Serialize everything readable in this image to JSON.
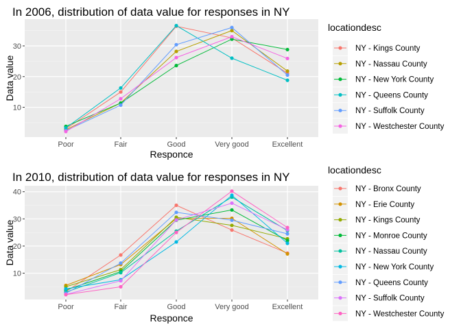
{
  "chart_data": [
    {
      "type": "line",
      "title": "In 2006, distribution of data value for responses in NY",
      "xlabel": "Responce",
      "ylabel": "Data value",
      "categories": [
        "Poor",
        "Fair",
        "Good",
        "Very good",
        "Excellent"
      ],
      "ylim": [
        0.3,
        38.7
      ],
      "yticks": [
        10,
        20,
        30
      ],
      "grid": true,
      "legend_position": "right",
      "legend_title": "locationdesc",
      "series": [
        {
          "name": "NY - Kings County",
          "color": "#F8766D",
          "values": [
            3.0,
            15.0,
            36.4,
            32.6,
            21.1
          ]
        },
        {
          "name": "NY - Nassau County",
          "color": "#B79F00",
          "values": [
            2.7,
            11.4,
            28.2,
            35.0,
            21.8
          ]
        },
        {
          "name": "NY - New York County",
          "color": "#00BA38",
          "values": [
            3.8,
            11.4,
            23.6,
            32.2,
            28.8
          ]
        },
        {
          "name": "NY - Queens County",
          "color": "#00BFC4",
          "values": [
            3.3,
            16.3,
            36.6,
            26.0,
            18.8
          ]
        },
        {
          "name": "NY - Suffolk County",
          "color": "#619CFF",
          "values": [
            2.4,
            10.7,
            30.4,
            36.0,
            20.5
          ]
        },
        {
          "name": "NY - Westchester County",
          "color": "#F564E3",
          "values": [
            2.1,
            12.8,
            26.2,
            33.0,
            25.9
          ]
        }
      ]
    },
    {
      "type": "line",
      "title": "In 2010, distribution of data value for responses in NY",
      "xlabel": "Responce",
      "ylabel": "Data value",
      "categories": [
        "Poor",
        "Fair",
        "Good",
        "Very good",
        "Excellent"
      ],
      "ylim": [
        0.3,
        42.2
      ],
      "yticks": [
        10,
        20,
        30,
        40
      ],
      "grid": true,
      "legend_position": "right",
      "legend_title": "locationdesc",
      "series": [
        {
          "name": "NY - Bronx County",
          "color": "#F8766D",
          "values": [
            3.2,
            16.7,
            35.0,
            25.9,
            17.4
          ]
        },
        {
          "name": "NY - Erie County",
          "color": "#D39200",
          "values": [
            5.5,
            13.2,
            30.1,
            30.2,
            17.1
          ]
        },
        {
          "name": "NY - Kings County",
          "color": "#93AA00",
          "values": [
            5.0,
            11.3,
            30.6,
            27.6,
            22.7
          ]
        },
        {
          "name": "NY - Monroe County",
          "color": "#00BA38",
          "values": [
            3.8,
            10.6,
            29.5,
            33.3,
            22.0
          ]
        },
        {
          "name": "NY - Nassau County",
          "color": "#00C19F",
          "values": [
            3.0,
            10.2,
            25.5,
            38.0,
            25.7
          ]
        },
        {
          "name": "NY - New York County",
          "color": "#00B9E3",
          "values": [
            4.2,
            7.6,
            21.5,
            38.7,
            21.0
          ]
        },
        {
          "name": "NY - Queens County",
          "color": "#619CFF",
          "values": [
            2.6,
            13.7,
            32.4,
            29.5,
            24.5
          ]
        },
        {
          "name": "NY - Suffolk County",
          "color": "#DB72FB",
          "values": [
            2.2,
            7.2,
            29.6,
            35.8,
            26.0
          ]
        },
        {
          "name": "NY - Westchester County",
          "color": "#FF61C3",
          "values": [
            2.1,
            5.0,
            25.0,
            40.2,
            26.8
          ]
        }
      ]
    }
  ]
}
